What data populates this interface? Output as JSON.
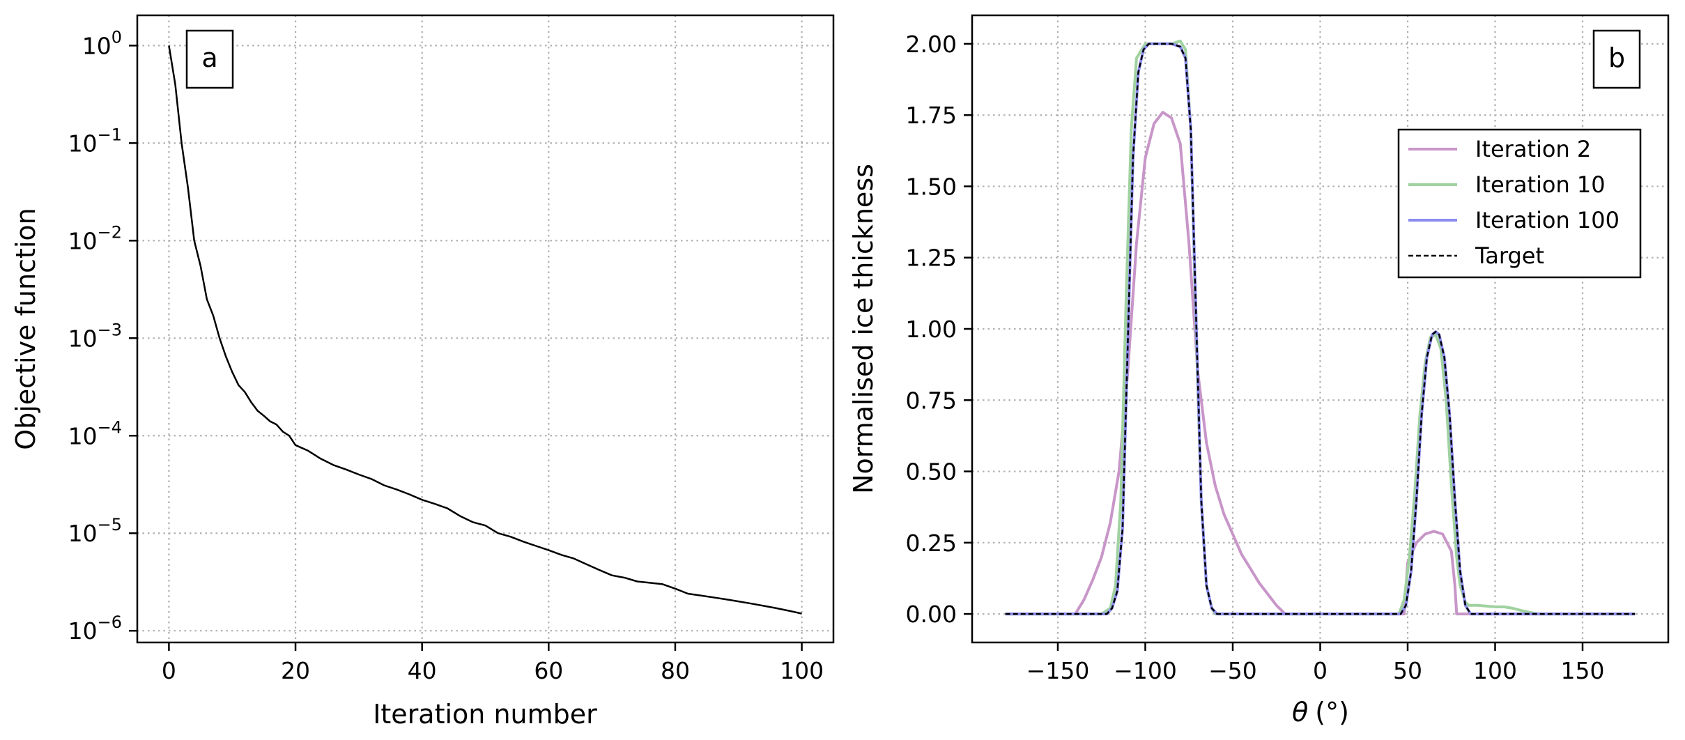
{
  "chart_data": [
    {
      "type": "line",
      "panel_label": "a",
      "xlabel": "Iteration number",
      "ylabel": "Objective function",
      "xlim": [
        -5,
        105
      ],
      "ylim_log10": [
        -6.12,
        0.31
      ],
      "yscale": "log",
      "grid": true,
      "x_ticks": [
        0,
        20,
        40,
        60,
        80,
        100
      ],
      "y_ticks": [
        {
          "base": "10",
          "exp": "0",
          "value": 1
        },
        {
          "base": "10",
          "exp": "−1",
          "value": 0.1
        },
        {
          "base": "10",
          "exp": "−2",
          "value": 0.01
        },
        {
          "base": "10",
          "exp": "−3",
          "value": 0.001
        },
        {
          "base": "10",
          "exp": "−4",
          "value": 0.0001
        },
        {
          "base": "10",
          "exp": "−5",
          "value": 1e-05
        },
        {
          "base": "10",
          "exp": "−6",
          "value": 1e-06
        }
      ],
      "series": [
        {
          "color": "#000000",
          "x": [
            0,
            1,
            2,
            3,
            4,
            5,
            6,
            7,
            8,
            9,
            10,
            11,
            12,
            13,
            14,
            15,
            16,
            17,
            18,
            19,
            20,
            22,
            24,
            26,
            28,
            30,
            32,
            34,
            36,
            38,
            40,
            42,
            44,
            46,
            48,
            50,
            52,
            54,
            56,
            58,
            60,
            62,
            64,
            66,
            68,
            70,
            72,
            74,
            76,
            78,
            80,
            82,
            84,
            86,
            88,
            90,
            92,
            94,
            96,
            98,
            100
          ],
          "y": [
            1.0,
            0.4,
            0.1,
            0.035,
            0.01,
            0.0055,
            0.0025,
            0.0017,
            0.001,
            0.00065,
            0.00045,
            0.00033,
            0.00028,
            0.00022,
            0.00018,
            0.00016,
            0.00014,
            0.00013,
            0.00011,
            0.0001,
            8e-05,
            7e-05,
            5.8e-05,
            5e-05,
            4.5e-05,
            4e-05,
            3.6e-05,
            3.1e-05,
            2.8e-05,
            2.5e-05,
            2.2e-05,
            2e-05,
            1.8e-05,
            1.5e-05,
            1.3e-05,
            1.2e-05,
            1e-05,
            9.2e-06,
            8.2e-06,
            7.4e-06,
            6.7e-06,
            6e-06,
            5.5e-06,
            4.8e-06,
            4.2e-06,
            3.7e-06,
            3.5e-06,
            3.2e-06,
            3.1e-06,
            3e-06,
            2.7e-06,
            2.4e-06,
            2.3e-06,
            2.2e-06,
            2.1e-06,
            2e-06,
            1.9e-06,
            1.8e-06,
            1.7e-06,
            1.6e-06,
            1.5e-06
          ]
        }
      ]
    },
    {
      "type": "line",
      "panel_label": "b",
      "xlabel_symbol": "θ",
      "xlabel_unit": "(°)",
      "ylabel": "Normalised ice thickness",
      "xlim": [
        -199,
        199
      ],
      "ylim": [
        -0.1,
        2.1
      ],
      "grid": true,
      "x_ticks": [
        -150,
        -100,
        -50,
        0,
        50,
        100,
        150
      ],
      "x_tick_labels": [
        "−150",
        "−100",
        "−50",
        "0",
        "50",
        "100",
        "150"
      ],
      "y_ticks": [
        0.0,
        0.25,
        0.5,
        0.75,
        1.0,
        1.25,
        1.5,
        1.75,
        2.0
      ],
      "y_tick_labels": [
        "0.00",
        "0.25",
        "0.50",
        "0.75",
        "1.00",
        "1.25",
        "1.50",
        "1.75",
        "2.00"
      ],
      "legend_position": "upper right",
      "series": [
        {
          "name": "Iteration 2",
          "color": "#c896c8",
          "x": [
            -180,
            -140,
            -135,
            -130,
            -125,
            -120,
            -115,
            -110,
            -105,
            -100,
            -95,
            -90,
            -85,
            -80,
            -75,
            -70,
            -65,
            -60,
            -55,
            -50,
            -45,
            -40,
            -35,
            -30,
            -25,
            -20,
            0,
            48,
            50,
            55,
            60,
            65,
            70,
            75,
            77,
            78,
            180
          ],
          "y": [
            0.0,
            0.0,
            0.05,
            0.12,
            0.2,
            0.32,
            0.5,
            0.85,
            1.3,
            1.6,
            1.72,
            1.76,
            1.74,
            1.65,
            1.3,
            0.85,
            0.6,
            0.45,
            0.35,
            0.28,
            0.21,
            0.16,
            0.11,
            0.07,
            0.03,
            0.0,
            0.0,
            0.0,
            0.18,
            0.25,
            0.28,
            0.29,
            0.28,
            0.22,
            0.1,
            0.0,
            0.0
          ]
        },
        {
          "name": "Iteration 10",
          "color": "#a0d2a0",
          "x": [
            -180,
            -125,
            -120,
            -117,
            -114,
            -111,
            -108,
            -105,
            -100,
            -95,
            -90,
            -85,
            -80,
            -77,
            -74,
            -71,
            -68,
            -65,
            -62,
            -60,
            0,
            45,
            48,
            51,
            54,
            57,
            60,
            63,
            66,
            69,
            72,
            75,
            78,
            80,
            83,
            85,
            90,
            100,
            105,
            110,
            115,
            120,
            125,
            180
          ],
          "y": [
            0.0,
            0.0,
            0.02,
            0.1,
            0.4,
            1.1,
            1.7,
            1.95,
            2.0,
            2.0,
            2.0,
            2.0,
            2.01,
            1.98,
            1.7,
            1.0,
            0.4,
            0.1,
            0.02,
            0.0,
            0.0,
            0.0,
            0.05,
            0.2,
            0.42,
            0.7,
            0.88,
            0.97,
            0.98,
            0.93,
            0.75,
            0.45,
            0.2,
            0.1,
            0.04,
            0.03,
            0.03,
            0.025,
            0.025,
            0.02,
            0.012,
            0.005,
            0.0,
            0.0
          ]
        },
        {
          "name": "Iteration 100",
          "color": "#8c8cf0",
          "x": [
            -180,
            -122,
            -119,
            -116,
            -113,
            -110,
            -107,
            -104,
            -101,
            -98,
            -95,
            -90,
            -85,
            -80,
            -77,
            -74,
            -71,
            -68,
            -65,
            -62,
            -59,
            0,
            46,
            49,
            52,
            55,
            58,
            61,
            64,
            66,
            68,
            71,
            74,
            77,
            80,
            83,
            86,
            180
          ],
          "y": [
            0.0,
            0.0,
            0.02,
            0.08,
            0.3,
            0.95,
            1.6,
            1.9,
            1.98,
            2.0,
            2.0,
            2.0,
            2.0,
            1.99,
            1.95,
            1.7,
            1.05,
            0.4,
            0.1,
            0.02,
            0.0,
            0.0,
            0.0,
            0.03,
            0.15,
            0.4,
            0.7,
            0.9,
            0.98,
            0.99,
            0.98,
            0.9,
            0.7,
            0.4,
            0.15,
            0.03,
            0.0,
            0.0
          ]
        },
        {
          "name": "Target",
          "color": "#000000",
          "dashed": true,
          "x": [
            -180,
            -122,
            -119,
            -116,
            -113,
            -110,
            -107,
            -104,
            -101,
            -98,
            -95,
            -90,
            -85,
            -80,
            -77,
            -74,
            -71,
            -68,
            -65,
            -62,
            -59,
            0,
            46,
            49,
            52,
            55,
            58,
            61,
            64,
            66,
            68,
            71,
            74,
            77,
            80,
            83,
            86,
            180
          ],
          "y": [
            0.0,
            0.0,
            0.02,
            0.08,
            0.3,
            0.95,
            1.6,
            1.9,
            1.98,
            2.0,
            2.0,
            2.0,
            2.0,
            1.99,
            1.95,
            1.7,
            1.05,
            0.4,
            0.1,
            0.02,
            0.0,
            0.0,
            0.0,
            0.03,
            0.15,
            0.4,
            0.7,
            0.9,
            0.98,
            0.99,
            0.98,
            0.9,
            0.7,
            0.4,
            0.15,
            0.03,
            0.0,
            0.0
          ]
        }
      ]
    }
  ]
}
